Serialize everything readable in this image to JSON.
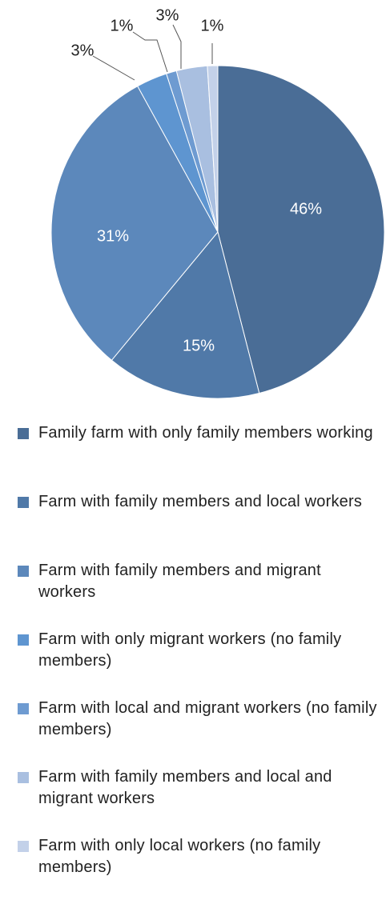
{
  "chart_data": {
    "type": "pie",
    "title": "",
    "legend_position": "bottom",
    "start_angle_deg": 0,
    "direction": "clockwise",
    "slices": [
      {
        "name": "Family farm with only family members working",
        "value": 46,
        "label": "46%",
        "color": "#4a6d96"
      },
      {
        "name": "Farm with family members and local workers",
        "value": 15,
        "label": "15%",
        "color": "#5079a8"
      },
      {
        "name": "Farm with family members and migrant workers",
        "value": 31,
        "label": "31%",
        "color": "#5c88bb"
      },
      {
        "name": "Farm with only migrant workers (no family members)",
        "value": 3,
        "label": "3%",
        "color": "#5e95d0"
      },
      {
        "name": "Farm with local and migrant workers (no family members)",
        "value": 1,
        "label": "1%",
        "color": "#6e9bd1"
      },
      {
        "name": "Farm with family members and local and migrant workers",
        "value": 3,
        "label": "3%",
        "color": "#a9bfe0"
      },
      {
        "name": "Farm with only local workers (no family members)",
        "value": 1,
        "label": "1%",
        "color": "#c3d1e9"
      }
    ]
  }
}
